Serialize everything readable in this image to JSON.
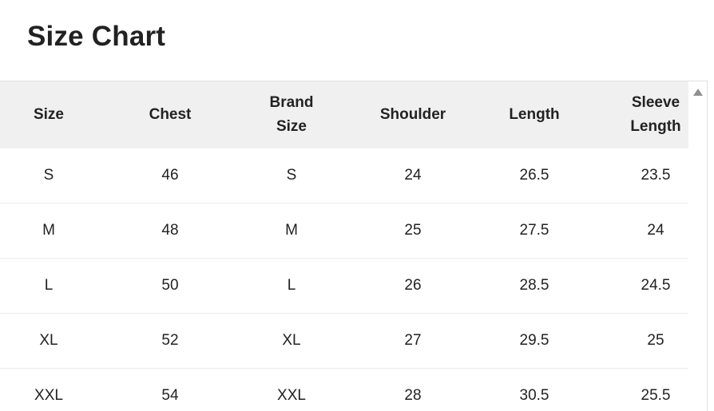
{
  "title": "Size Chart",
  "table": {
    "headers": [
      [
        "Size"
      ],
      [
        "Chest"
      ],
      [
        "Brand",
        "Size"
      ],
      [
        "Shoulder"
      ],
      [
        "Length"
      ],
      [
        "Sleeve",
        "Length"
      ]
    ],
    "rows": [
      [
        "S",
        "46",
        "S",
        "24",
        "26.5",
        "23.5"
      ],
      [
        "M",
        "48",
        "M",
        "25",
        "27.5",
        "24"
      ],
      [
        "L",
        "50",
        "L",
        "26",
        "28.5",
        "24.5"
      ],
      [
        "XL",
        "52",
        "XL",
        "27",
        "29.5",
        "25"
      ],
      [
        "XXL",
        "54",
        "XXL",
        "28",
        "30.5",
        "25.5"
      ]
    ]
  },
  "scrollbar": {
    "icon": "arrow-up-icon"
  }
}
